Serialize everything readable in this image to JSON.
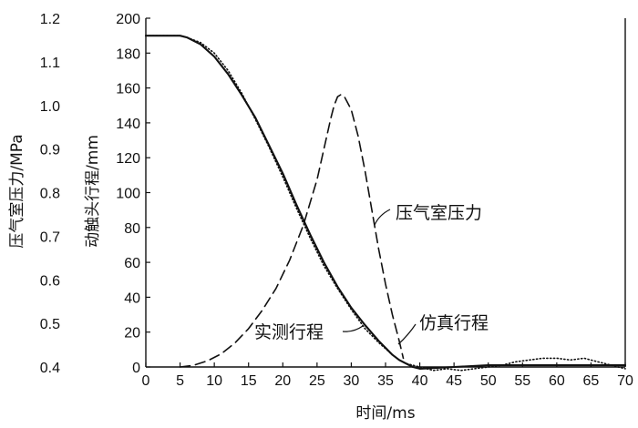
{
  "chart_data": {
    "type": "line",
    "x": {
      "label": "时间/ms",
      "range": [
        0,
        70
      ],
      "ticks": [
        0,
        5,
        10,
        15,
        20,
        25,
        30,
        35,
        40,
        45,
        50,
        55,
        60,
        65,
        70
      ]
    },
    "y_left": {
      "label": "压气室压力/MPa",
      "range": [
        0.4,
        1.2
      ],
      "ticks": [
        "0.4",
        "0.5",
        "0.6",
        "0.7",
        "0.8",
        "0.9",
        "1.0",
        "1.1",
        "1.2"
      ]
    },
    "y_right": {
      "label": "动触头行程/mm",
      "range": [
        0,
        200
      ],
      "ticks": [
        "0",
        "20",
        "40",
        "60",
        "80",
        "100",
        "120",
        "140",
        "160",
        "180",
        "200"
      ]
    },
    "annotations": [
      {
        "text": "压气室压力"
      },
      {
        "text": "实测行程"
      },
      {
        "text": "仿真行程"
      }
    ],
    "series": [
      {
        "name": "仿真行程",
        "axis": "stroke",
        "style": "solid",
        "x": [
          0,
          4,
          5,
          6,
          8,
          10,
          12,
          14,
          16,
          18,
          20,
          22,
          24,
          26,
          28,
          30,
          32,
          34,
          36,
          37,
          38,
          39,
          40,
          45,
          50,
          55,
          60,
          65,
          70
        ],
        "y": [
          190,
          190,
          190,
          189,
          185,
          178,
          168,
          156,
          143,
          127,
          111,
          93,
          76,
          60,
          46,
          34,
          24,
          15,
          7,
          4,
          2,
          0,
          -1,
          0,
          1,
          1,
          1,
          1,
          1
        ]
      },
      {
        "name": "实测行程",
        "axis": "stroke",
        "style": "dotted",
        "x": [
          0,
          4,
          5,
          6,
          8,
          10,
          12,
          14,
          16,
          18,
          20,
          22,
          24,
          26,
          28,
          30,
          32,
          34,
          36,
          37,
          38,
          39,
          40,
          42,
          44,
          46,
          48,
          50,
          52,
          54,
          56,
          58,
          60,
          62,
          64,
          66,
          68,
          70
        ],
        "y": [
          190,
          190,
          190,
          189,
          186,
          180,
          170,
          157,
          142,
          126,
          109,
          91,
          74,
          58,
          45,
          33,
          22,
          14,
          7,
          4,
          2,
          1,
          0,
          -2,
          -1,
          -2,
          -1,
          0,
          1,
          3,
          4,
          5,
          5,
          4,
          5,
          3,
          1,
          -1
        ]
      },
      {
        "name": "压气室压力",
        "axis": "pressure",
        "style": "dashed",
        "x": [
          5,
          7,
          9,
          11,
          13,
          15,
          17,
          19,
          21,
          23,
          25,
          26,
          27,
          27.5,
          28,
          28.5,
          29,
          30,
          31,
          32,
          33,
          34,
          35,
          36,
          37,
          37.6
        ],
        "y": [
          0.4,
          0.404,
          0.414,
          0.43,
          0.455,
          0.488,
          0.53,
          0.58,
          0.645,
          0.725,
          0.83,
          0.9,
          0.97,
          1.0,
          1.02,
          1.025,
          1.02,
          0.99,
          0.93,
          0.85,
          0.76,
          0.67,
          0.59,
          0.52,
          0.46,
          0.42
        ]
      }
    ]
  }
}
